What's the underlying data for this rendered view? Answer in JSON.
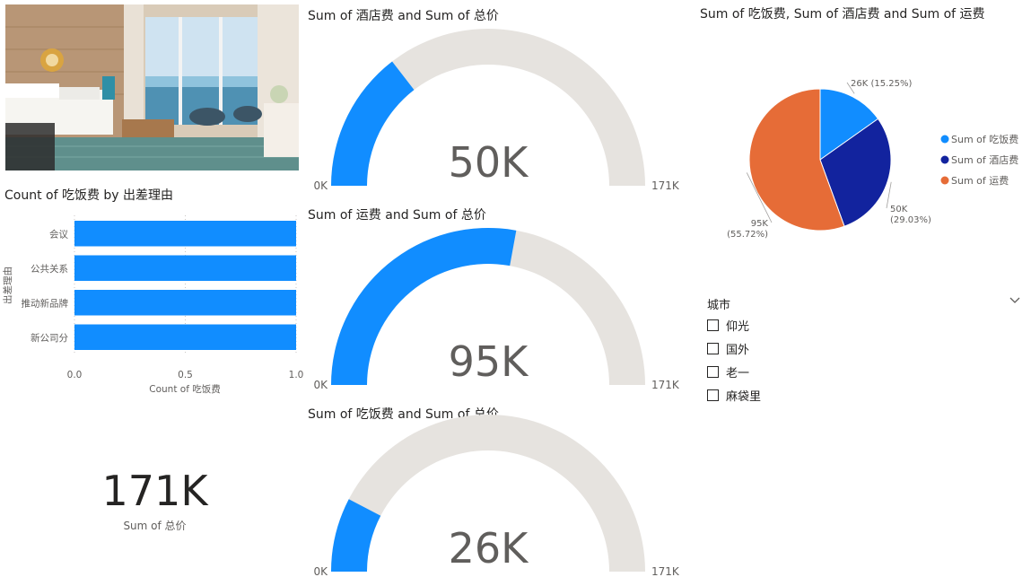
{
  "colors": {
    "gauge_fill": "#118DFF",
    "gauge_track": "#E6E3DF",
    "bar": "#118DFF",
    "pie_food": "#118DFF",
    "pie_hotel": "#12239E",
    "pie_freight": "#E66C37"
  },
  "photo": {
    "icon": "hotel-room-photo"
  },
  "bar_chart": {
    "title": "Count of 吃饭费 by 出差理由",
    "xlabel": "Count of 吃饭费",
    "ylabel": "出差理由",
    "ticks": [
      "0.0",
      "0.5",
      "1.0"
    ]
  },
  "gauges": [
    {
      "title": "Sum of 酒店费 and Sum of 总价",
      "value_label": "50K",
      "min_label": "0K",
      "max_label": "171K"
    },
    {
      "title": "Sum of 运费 and Sum of 总价",
      "value_label": "95K",
      "min_label": "0K",
      "max_label": "171K"
    },
    {
      "title": "Sum of 吃饭费 and Sum of 总价",
      "value_label": "26K",
      "min_label": "0K",
      "max_label": "171K"
    }
  ],
  "card": {
    "value": "171K",
    "label": "Sum of 总价"
  },
  "pie": {
    "title": "Sum of 吃饭费, Sum of 酒店费 and Sum of 运费",
    "slice_labels": [
      {
        "value": "26K",
        "pct": "(15.25%)"
      },
      {
        "value": "50K",
        "pct": "(29.03%)"
      },
      {
        "value": "95K",
        "pct": "(55.72%)"
      }
    ],
    "legend": [
      "Sum of 吃饭费",
      "Sum of 酒店费",
      "Sum of 运费"
    ]
  },
  "slicer": {
    "title": "城市",
    "items": [
      "仰光",
      "国外",
      "老一",
      "麻袋里"
    ]
  },
  "chart_data": [
    {
      "type": "bar",
      "orientation": "horizontal",
      "title": "Count of 吃饭费 by 出差理由",
      "xlabel": "Count of 吃饭费",
      "ylabel": "出差理由",
      "categories": [
        "会议",
        "公共关系",
        "推动新品牌",
        "新公司分"
      ],
      "values": [
        1,
        1,
        1,
        1
      ],
      "xlim": [
        0,
        1
      ],
      "grid": true
    },
    {
      "type": "gauge",
      "title": "Sum of 酒店费 and Sum of 总价",
      "value": 49.7,
      "min": 0,
      "max": 171,
      "unit": "K"
    },
    {
      "type": "gauge",
      "title": "Sum of 运费 and Sum of 总价",
      "value": 95.3,
      "min": 0,
      "max": 171,
      "unit": "K"
    },
    {
      "type": "gauge",
      "title": "Sum of 吃饭费 and Sum of 总价",
      "value": 26.1,
      "min": 0,
      "max": 171,
      "unit": "K"
    },
    {
      "type": "pie",
      "title": "Sum of 吃饭费, Sum of 酒店费 and Sum of 运费",
      "categories": [
        "Sum of 吃饭费",
        "Sum of 酒店费",
        "Sum of 运费"
      ],
      "values": [
        26,
        50,
        95
      ],
      "percentages": [
        15.25,
        29.03,
        55.72
      ],
      "legend": "right"
    }
  ]
}
